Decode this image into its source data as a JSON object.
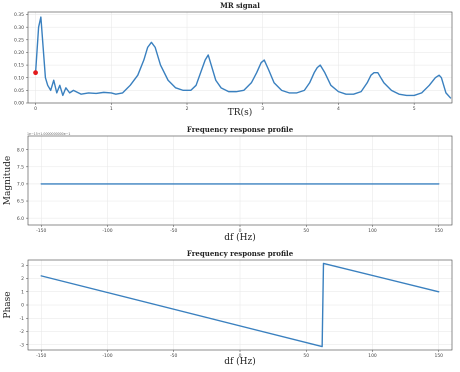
{
  "colors": {
    "line": "#3a80bf",
    "marker": "#e41a1c"
  },
  "chart_data": [
    {
      "type": "line",
      "title": "MR signal",
      "xlabel": "TR(s)",
      "ylabel": "",
      "xlim": [
        -0.1,
        5.5
      ],
      "ylim": [
        0,
        0.36
      ],
      "xticks": [
        0,
        1,
        2,
        3,
        4,
        5
      ],
      "xtick_labels": [
        "0",
        "1",
        "2",
        "3",
        "4",
        "5"
      ],
      "yticks": [
        0,
        0.05,
        0.1,
        0.15,
        0.2,
        0.25,
        0.3,
        0.35
      ],
      "ytick_labels": [
        "0.00",
        "0.05",
        "0.10",
        "0.15",
        "0.20",
        "0.25",
        "0.30",
        "0.35"
      ],
      "grid": true,
      "marker_point": {
        "x": 0.0,
        "y": 0.12
      },
      "series": [
        {
          "x": [
            0.0,
            0.04,
            0.07,
            0.1,
            0.13,
            0.16,
            0.2,
            0.24,
            0.28,
            0.32,
            0.36,
            0.4,
            0.45,
            0.5,
            0.6,
            0.7,
            0.8,
            0.9,
            1.0,
            1.06,
            1.15,
            1.25,
            1.35,
            1.43,
            1.48,
            1.53,
            1.58,
            1.65,
            1.75,
            1.85,
            1.95,
            2.05,
            2.12,
            2.18,
            2.24,
            2.28,
            2.32,
            2.38,
            2.45,
            2.55,
            2.65,
            2.75,
            2.85,
            2.92,
            2.98,
            3.02,
            3.08,
            3.15,
            3.25,
            3.35,
            3.45,
            3.55,
            3.62,
            3.68,
            3.72,
            3.76,
            3.82,
            3.9,
            4.0,
            4.1,
            4.2,
            4.3,
            4.38,
            4.43,
            4.47,
            4.52,
            4.6,
            4.7,
            4.8,
            4.9,
            5.0,
            5.1,
            5.2,
            5.28,
            5.33,
            5.36,
            5.42,
            5.48
          ],
          "y": [
            0.12,
            0.3,
            0.34,
            0.22,
            0.1,
            0.07,
            0.05,
            0.09,
            0.04,
            0.07,
            0.03,
            0.06,
            0.04,
            0.05,
            0.035,
            0.04,
            0.038,
            0.042,
            0.04,
            0.035,
            0.04,
            0.07,
            0.11,
            0.17,
            0.22,
            0.24,
            0.22,
            0.15,
            0.09,
            0.06,
            0.05,
            0.05,
            0.07,
            0.12,
            0.17,
            0.19,
            0.15,
            0.09,
            0.06,
            0.045,
            0.045,
            0.05,
            0.08,
            0.12,
            0.16,
            0.17,
            0.13,
            0.08,
            0.05,
            0.04,
            0.04,
            0.05,
            0.08,
            0.12,
            0.14,
            0.15,
            0.12,
            0.07,
            0.045,
            0.035,
            0.035,
            0.045,
            0.08,
            0.11,
            0.12,
            0.12,
            0.08,
            0.05,
            0.035,
            0.03,
            0.03,
            0.04,
            0.07,
            0.1,
            0.11,
            0.1,
            0.04,
            0.02
          ]
        }
      ]
    },
    {
      "type": "line",
      "title": "Frequency response profile",
      "xlabel": "df (Hz)",
      "ylabel": "Magnitude",
      "offset_text": "1e−15+1.0000000000e−1",
      "xlim": [
        -160,
        160
      ],
      "ylim": [
        5.8,
        8.4
      ],
      "xticks": [
        -150,
        -100,
        -50,
        0,
        50,
        100,
        150
      ],
      "xtick_labels": [
        "-150",
        "-100",
        "-50",
        "0",
        "50",
        "100",
        "150"
      ],
      "yticks": [
        6.0,
        6.5,
        7.0,
        7.5,
        8.0
      ],
      "ytick_labels": [
        "6.0",
        "6.5",
        "7.0",
        "7.5",
        "8.0"
      ],
      "grid": true,
      "series": [
        {
          "x": [
            -150,
            150
          ],
          "y": [
            7.0,
            7.0
          ]
        }
      ]
    },
    {
      "type": "line",
      "title": "Frequency response profile",
      "xlabel": "df (Hz)",
      "ylabel": "Phase",
      "xlim": [
        -160,
        160
      ],
      "ylim": [
        -3.4,
        3.4
      ],
      "xticks": [
        -150,
        -100,
        -50,
        0,
        50,
        100,
        150
      ],
      "xtick_labels": [
        "-150",
        "-100",
        "-50",
        "0",
        "50",
        "100",
        "150"
      ],
      "yticks": [
        -3,
        -2,
        -1,
        0,
        1,
        2,
        3
      ],
      "ytick_labels": [
        "-3",
        "-2",
        "-1",
        "0",
        "1",
        "2",
        "3"
      ],
      "grid": true,
      "series": [
        {
          "x": [
            -150,
            62,
            63,
            150
          ],
          "y": [
            2.2,
            -3.14,
            3.14,
            1.0
          ]
        }
      ]
    }
  ]
}
